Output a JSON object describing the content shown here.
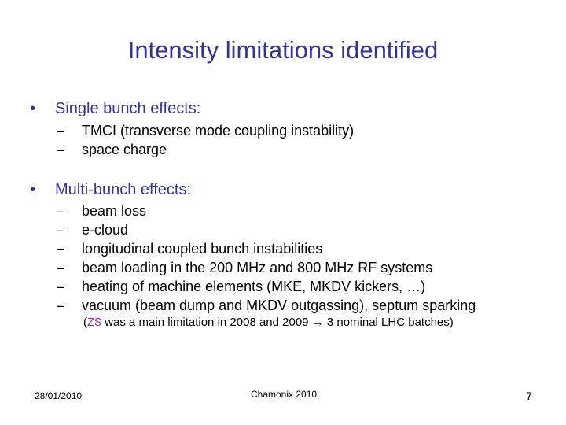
{
  "title": "Intensity limitations identified",
  "sections": [
    {
      "heading": "Single bunch effects:",
      "items": [
        "TMCI (transverse mode coupling instability)",
        "space charge"
      ]
    },
    {
      "heading": "Multi-bunch effects:",
      "items": [
        "beam loss",
        "e-cloud",
        "longitudinal coupled bunch instabilities",
        "beam loading in the 200 MHz and 800 MHz RF systems",
        "heating of machine elements (MKE, MKDV kickers, …)",
        "vacuum (beam dump and MKDV outgassing), septum sparking"
      ]
    }
  ],
  "note": {
    "open": "(",
    "highlight": "ZS",
    "text": " was a main limitation in 2008 and 2009 ",
    "arrow": "→",
    "tail": " 3 nominal LHC batches)"
  },
  "footer": {
    "date": "28/01/2010",
    "center": "Chamonix 2010",
    "page": "7"
  },
  "glyphs": {
    "bullet": "•",
    "dash": "–"
  },
  "colors": {
    "title": "#333399",
    "heading": "#333399",
    "highlight": "#993399"
  }
}
